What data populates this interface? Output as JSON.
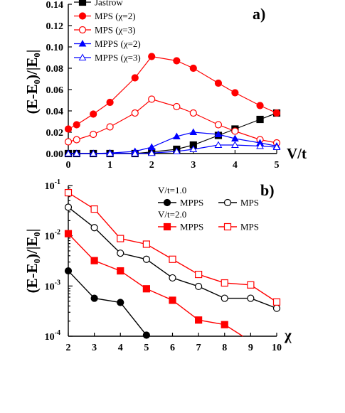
{
  "colors": {
    "black": "#000000",
    "red": "#ff0000",
    "blue": "#0000ff"
  },
  "chart_data": [
    {
      "type": "line",
      "panel_label": "a)",
      "xlabel": "V/t",
      "ylabel": "(E-E₀)/|E₀|",
      "xlim": [
        0,
        5
      ],
      "ylim": [
        0,
        0.14
      ],
      "xticks": [
        "0",
        "1",
        "2",
        "3",
        "4",
        "5"
      ],
      "yticks": [
        "0.00",
        "0.02",
        "0.04",
        "0.06",
        "0.08",
        "0.10",
        "0.12",
        "0.14"
      ],
      "legend_position": "top-left",
      "series": [
        {
          "name": "Jastrow",
          "color": "#000000",
          "marker": "square-filled",
          "x": [
            0,
            0.2,
            0.6,
            1.0,
            1.6,
            2.0,
            2.6,
            3.0,
            3.6,
            4.0,
            4.6,
            5.0
          ],
          "y": [
            0.0,
            0.0,
            0.0,
            0.0,
            0.0,
            0.0015,
            0.004,
            0.008,
            0.017,
            0.023,
            0.032,
            0.038
          ]
        },
        {
          "name": "MPS (χ=2)",
          "color": "#ff0000",
          "marker": "circle-filled",
          "x": [
            0,
            0.2,
            0.6,
            1.0,
            1.6,
            2.0,
            2.6,
            3.0,
            3.6,
            4.0,
            4.6,
            5.0
          ],
          "y": [
            0.023,
            0.027,
            0.037,
            0.048,
            0.071,
            0.091,
            0.087,
            0.08,
            0.066,
            0.057,
            0.045,
            0.038
          ]
        },
        {
          "name": "MPS (χ=3)",
          "color": "#ff0000",
          "marker": "circle-open",
          "x": [
            0,
            0.2,
            0.6,
            1.0,
            1.6,
            2.0,
            2.6,
            3.0,
            3.6,
            4.0,
            4.6,
            5.0
          ],
          "y": [
            0.011,
            0.013,
            0.018,
            0.025,
            0.038,
            0.051,
            0.044,
            0.038,
            0.027,
            0.021,
            0.013,
            0.01
          ]
        },
        {
          "name": "MPPS (χ=2)",
          "color": "#0000ff",
          "marker": "triangle-filled",
          "x": [
            0,
            0.2,
            0.6,
            1.0,
            1.6,
            2.0,
            2.6,
            3.0,
            3.6,
            4.0,
            4.6,
            5.0
          ],
          "y": [
            0.0,
            0.0,
            0.0,
            0.0005,
            0.002,
            0.006,
            0.016,
            0.02,
            0.018,
            0.014,
            0.01,
            0.007
          ]
        },
        {
          "name": "MPPS (χ=3)",
          "color": "#0000ff",
          "marker": "triangle-open",
          "x": [
            0,
            0.2,
            0.6,
            1.0,
            1.6,
            2.0,
            2.6,
            3.0,
            3.6,
            4.0,
            4.6,
            5.0
          ],
          "y": [
            0.0,
            0.0,
            0.0,
            0.0,
            0.0,
            0.0005,
            0.002,
            0.004,
            0.008,
            0.008,
            0.007,
            0.006
          ]
        }
      ]
    },
    {
      "type": "line",
      "panel_label": "b)",
      "xlabel": "χ",
      "ylabel": "(E-E₀)/|E₀|",
      "xlim": [
        2,
        10
      ],
      "ylim": [
        0.0001,
        0.1
      ],
      "yscale": "log",
      "xticks": [
        "2",
        "3",
        "4",
        "5",
        "6",
        "7",
        "8",
        "9",
        "10"
      ],
      "legend_position": "top-right",
      "legend_groups": [
        "V/t=1.0",
        "V/t=2.0"
      ],
      "series": [
        {
          "name": "MPPS",
          "group": "V/t=1.0",
          "color": "#000000",
          "marker": "circle-filled",
          "x": [
            2,
            3,
            4,
            5
          ],
          "y": [
            0.002,
            0.00057,
            0.00047,
            0.000105
          ]
        },
        {
          "name": "MPS",
          "group": "V/t=1.0",
          "color": "#000000",
          "marker": "circle-open",
          "x": [
            2,
            3,
            4,
            5,
            6,
            7,
            8,
            9,
            10
          ],
          "y": [
            0.037,
            0.0145,
            0.0045,
            0.0034,
            0.00145,
            0.00098,
            0.00057,
            0.00057,
            0.00036
          ]
        },
        {
          "name": "MPPS",
          "group": "V/t=2.0",
          "color": "#ff0000",
          "marker": "square-filled",
          "x": [
            2,
            3,
            4,
            5,
            6,
            7,
            8,
            8.7
          ],
          "y": [
            0.011,
            0.0032,
            0.002,
            0.00088,
            0.00052,
            0.00021,
            0.00017,
            0.0001
          ]
        },
        {
          "name": "MPS",
          "group": "V/t=2.0",
          "color": "#ff0000",
          "marker": "square-open",
          "x": [
            2,
            3,
            4,
            5,
            6,
            7,
            8,
            9,
            10
          ],
          "y": [
            0.072,
            0.034,
            0.0088,
            0.0068,
            0.0034,
            0.0017,
            0.00115,
            0.00105,
            0.00048
          ]
        }
      ]
    }
  ]
}
